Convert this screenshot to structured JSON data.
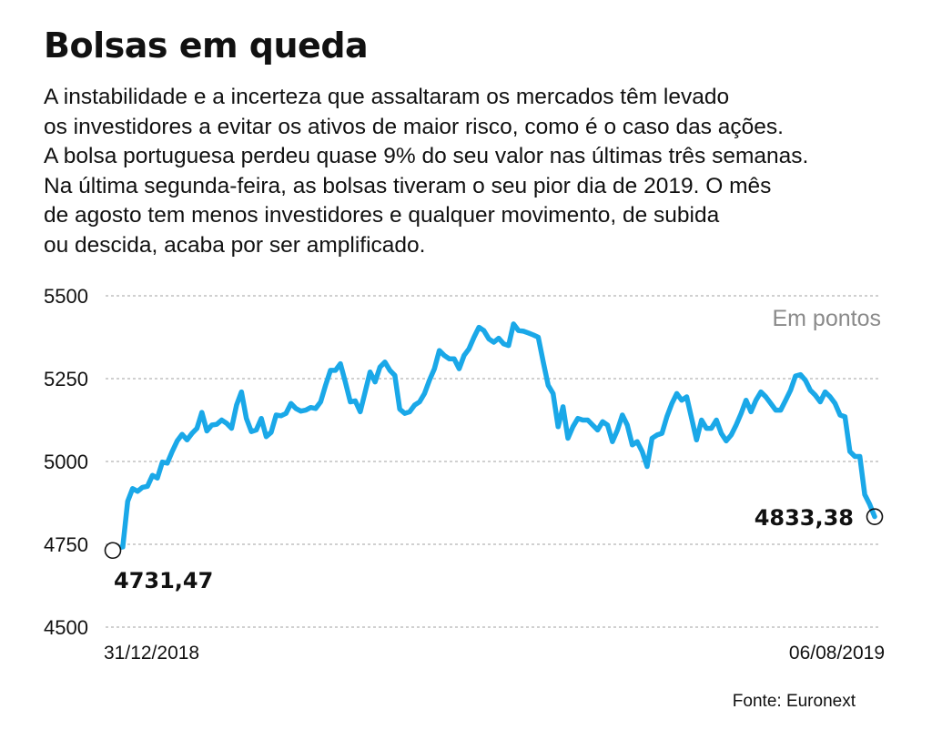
{
  "title": "Bolsas em queda",
  "subtitle_lines": [
    "A instabilidade e a incerteza que assaltaram os mercados têm levado",
    "os investidores a evitar os ativos de maior risco, como é o caso das ações.",
    "A bolsa portuguesa perdeu quase 9% do seu valor nas últimas três semanas.",
    "Na última segunda-feira, as bolsas tiveram o seu pior dia de 2019. O mês",
    "de agosto tem menos investidores e qualquer movimento, de subida",
    "ou descida, acaba por ser amplificado."
  ],
  "source": "Fonte: Euronext",
  "colors": {
    "line": "#1aa8e8",
    "grid": "#b5b5b5",
    "text": "#111111",
    "unit": "#8a8a8a"
  },
  "chart_data": {
    "type": "line",
    "unit_label": "Em pontos",
    "ylim": [
      4500,
      5500
    ],
    "yticks": [
      5500,
      5250,
      5000,
      4750,
      4500
    ],
    "grid": "horizontal dashed",
    "x_start_label": "31/12/2018",
    "x_end_label": "06/08/2019",
    "start_value_label": "4731,47",
    "end_value_label": "4833,38",
    "series": [
      {
        "values": [
          4731.47,
          4740,
          4742,
          4880,
          4918,
          4910,
          4922,
          4925,
          4958,
          4950,
          4998,
          4995,
          5030,
          5062,
          5082,
          5065,
          5085,
          5100,
          5148,
          5092,
          5110,
          5112,
          5125,
          5115,
          5100,
          5170,
          5210,
          5130,
          5090,
          5095,
          5130,
          5075,
          5088,
          5140,
          5138,
          5145,
          5175,
          5160,
          5152,
          5155,
          5163,
          5160,
          5180,
          5230,
          5275,
          5275,
          5295,
          5240,
          5180,
          5183,
          5150,
          5210,
          5270,
          5240,
          5285,
          5300,
          5275,
          5260,
          5158,
          5145,
          5150,
          5170,
          5180,
          5205,
          5245,
          5280,
          5335,
          5320,
          5310,
          5310,
          5280,
          5320,
          5340,
          5375,
          5405,
          5395,
          5370,
          5360,
          5372,
          5355,
          5350,
          5415,
          5395,
          5393,
          5388,
          5382,
          5375,
          5300,
          5230,
          5205,
          5105,
          5165,
          5070,
          5105,
          5130,
          5125,
          5125,
          5110,
          5095,
          5120,
          5110,
          5060,
          5095,
          5140,
          5110,
          5050,
          5060,
          5030,
          4985,
          5070,
          5080,
          5085,
          5135,
          5175,
          5205,
          5185,
          5195,
          5130,
          5065,
          5125,
          5100,
          5100,
          5125,
          5085,
          5062,
          5080,
          5110,
          5145,
          5185,
          5150,
          5185,
          5210,
          5195,
          5175,
          5155,
          5155,
          5185,
          5215,
          5258,
          5262,
          5245,
          5215,
          5200,
          5180,
          5210,
          5195,
          5175,
          5140,
          5135,
          5030,
          5015,
          5015,
          4900,
          4870,
          4833.38
        ]
      }
    ]
  }
}
